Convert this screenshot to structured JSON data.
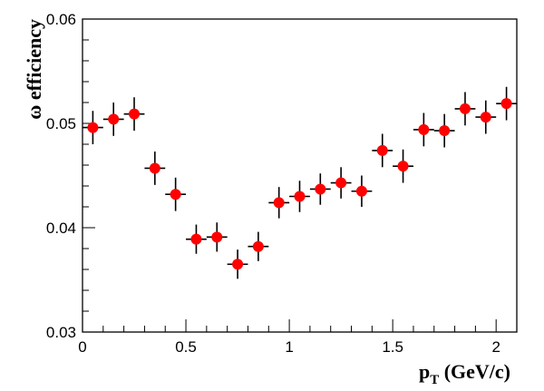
{
  "chart_data": {
    "type": "scatter",
    "xlabel": "p",
    "xlabel_subscript": "T",
    "xlabel_suffix": " (GeV/c)",
    "ylabel": "ω efficiency",
    "xlim": [
      0,
      2.1
    ],
    "ylim": [
      0.03,
      0.06
    ],
    "x_ticks": [
      0,
      0.5,
      1,
      1.5,
      2
    ],
    "x_tick_labels": [
      "0",
      "0.5",
      "1",
      "1.5",
      "2"
    ],
    "y_ticks": [
      0.03,
      0.04,
      0.05,
      0.06
    ],
    "y_tick_labels": [
      "0.03",
      "0.04",
      "0.05",
      "0.06"
    ],
    "marker_color": "#ff0000",
    "x_half_width": 0.05,
    "points": [
      {
        "x": 0.05,
        "y": 0.0496,
        "err": 0.0016
      },
      {
        "x": 0.15,
        "y": 0.0504,
        "err": 0.0016
      },
      {
        "x": 0.25,
        "y": 0.0509,
        "err": 0.0016
      },
      {
        "x": 0.35,
        "y": 0.0457,
        "err": 0.0016
      },
      {
        "x": 0.45,
        "y": 0.0432,
        "err": 0.0016
      },
      {
        "x": 0.55,
        "y": 0.0389,
        "err": 0.0014
      },
      {
        "x": 0.65,
        "y": 0.0391,
        "err": 0.0014
      },
      {
        "x": 0.75,
        "y": 0.0365,
        "err": 0.0014
      },
      {
        "x": 0.85,
        "y": 0.0382,
        "err": 0.0014
      },
      {
        "x": 0.95,
        "y": 0.0424,
        "err": 0.0015
      },
      {
        "x": 1.05,
        "y": 0.043,
        "err": 0.0015
      },
      {
        "x": 1.15,
        "y": 0.0437,
        "err": 0.0015
      },
      {
        "x": 1.25,
        "y": 0.0443,
        "err": 0.0015
      },
      {
        "x": 1.35,
        "y": 0.0435,
        "err": 0.0015
      },
      {
        "x": 1.45,
        "y": 0.0474,
        "err": 0.0016
      },
      {
        "x": 1.55,
        "y": 0.0459,
        "err": 0.0016
      },
      {
        "x": 1.65,
        "y": 0.0494,
        "err": 0.0016
      },
      {
        "x": 1.75,
        "y": 0.0493,
        "err": 0.0016
      },
      {
        "x": 1.85,
        "y": 0.0514,
        "err": 0.0016
      },
      {
        "x": 1.95,
        "y": 0.0506,
        "err": 0.0016
      },
      {
        "x": 2.05,
        "y": 0.0519,
        "err": 0.0016
      }
    ]
  }
}
